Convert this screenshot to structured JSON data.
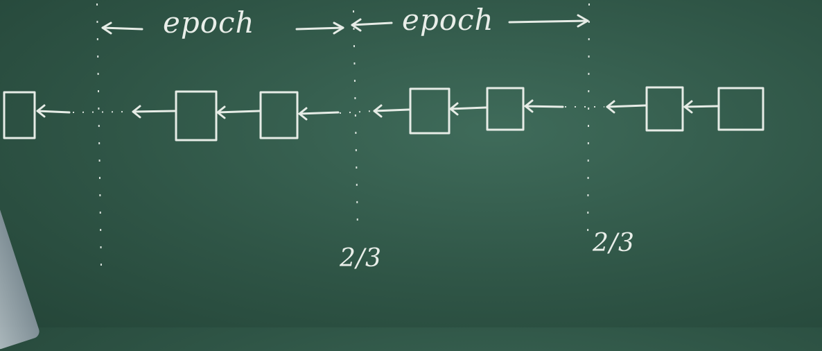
{
  "labels": {
    "epoch_1": "epoch",
    "epoch_2": "epoch",
    "threshold_1": "2/3",
    "threshold_2": "2/3"
  },
  "colors": {
    "board": "#2f5546",
    "chalk": "#e6ece6"
  }
}
